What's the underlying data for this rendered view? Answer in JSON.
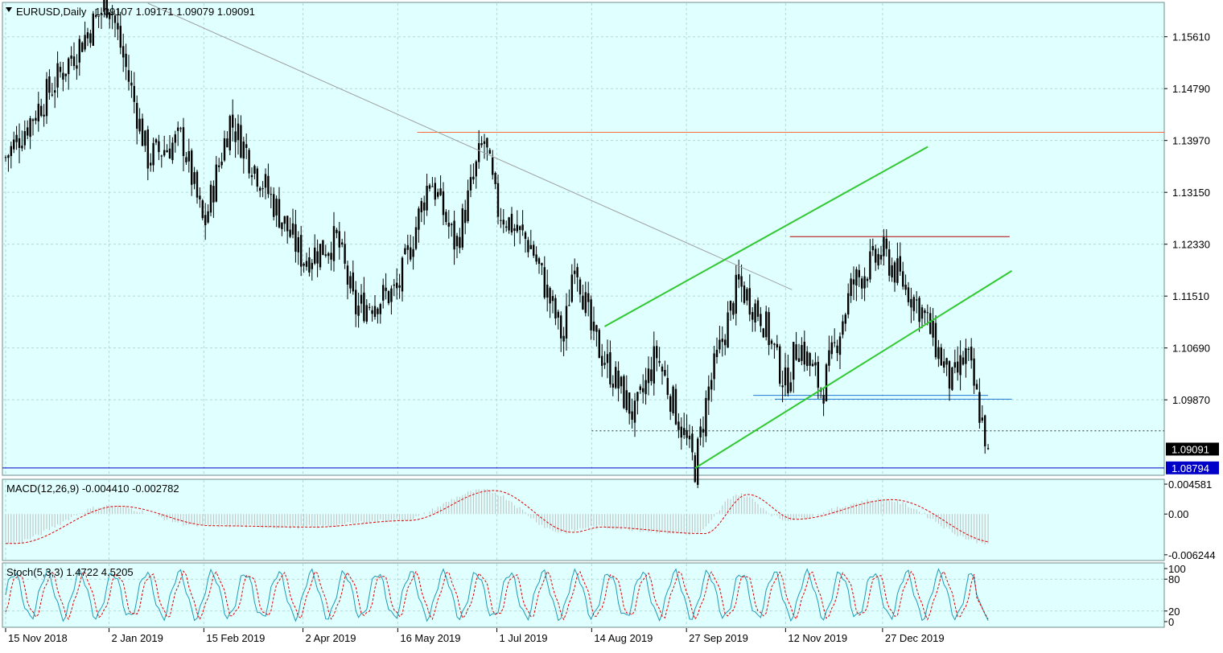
{
  "header": {
    "symbol_label": "EURUSD,Daily",
    "ohlc": "1.09107 1.09171 1.09079 1.09091"
  },
  "colors": {
    "background": "#e0ffff",
    "candle": "#000000",
    "grid": "#b4d7d7",
    "channel": "#32c832",
    "resistance": "#ff6a3c",
    "upper_box": "#b40000",
    "support_blue": "#1e78d2",
    "bottom_line": "#0000c8",
    "trendline": "#a0a0a0",
    "macd_hist": "#c0c0c0",
    "macd_signal": "#e00000",
    "stoch_main": "#1e9bb4",
    "stoch_signal": "#e00000"
  },
  "chart_data": [
    {
      "type": "candlestick",
      "panel": "price",
      "symbol": "EURUSD",
      "timeframe": "Daily",
      "last_ohlc": {
        "open": 1.09107,
        "high": 1.09171,
        "low": 1.09079,
        "close": 1.09091
      },
      "y_ticks": [
        "1.15610",
        "1.14790",
        "1.13970",
        "1.13150",
        "1.12330",
        "1.11510",
        "1.10690",
        "1.09870"
      ],
      "y_range": [
        1.0869,
        1.1614
      ],
      "x_labels": [
        "15 Nov 2018",
        "2 Jan 2019",
        "15 Feb 2019",
        "2 Apr 2019",
        "16 May 2019",
        "1 Jul 2019",
        "14 Aug 2019",
        "27 Sep 2019",
        "12 Nov 2019",
        "27 Dec 2019"
      ],
      "price_tags": [
        {
          "label": "1.09091",
          "value": 1.09091,
          "style": "current"
        },
        {
          "label": "1.08794",
          "value": 1.08794,
          "style": "line"
        }
      ],
      "swing_points": [
        {
          "date": "15 Nov 2018",
          "price": 1.137
        },
        {
          "date": "2 Jan 2019",
          "price": 1.162
        },
        {
          "date": "20 Jan 2019",
          "price": 1.137
        },
        {
          "date": "5 Feb 2019",
          "price": 1.14
        },
        {
          "date": "15 Feb 2019",
          "price": 1.126
        },
        {
          "date": "27 Feb 2019",
          "price": 1.143
        },
        {
          "date": "2 Apr 2019",
          "price": 1.121
        },
        {
          "date": "18 Apr 2019",
          "price": 1.124
        },
        {
          "date": "26 Apr 2019",
          "price": 1.113
        },
        {
          "date": "16 May 2019",
          "price": 1.116
        },
        {
          "date": "31 May 2019",
          "price": 1.134
        },
        {
          "date": "12 Jun 2019",
          "price": 1.123
        },
        {
          "date": "25 Jun 2019",
          "price": 1.14
        },
        {
          "date": "1 Jul 2019",
          "price": 1.129
        },
        {
          "date": "17 Jul 2019",
          "price": 1.123
        },
        {
          "date": "1 Aug 2019",
          "price": 1.108
        },
        {
          "date": "6 Aug 2019",
          "price": 1.122
        },
        {
          "date": "14 Aug 2019",
          "price": 1.109
        },
        {
          "date": "3 Sep 2019",
          "price": 1.096
        },
        {
          "date": "13 Sep 2019",
          "price": 1.106
        },
        {
          "date": "1 Oct 2019",
          "price": 1.088
        },
        {
          "date": "7 Oct 2019",
          "price": 1.1
        },
        {
          "date": "21 Oct 2019",
          "price": 1.117
        },
        {
          "date": "1 Nov 2019",
          "price": 1.112
        },
        {
          "date": "12 Nov 2019",
          "price": 1.101
        },
        {
          "date": "18 Nov 2019",
          "price": 1.108
        },
        {
          "date": "29 Nov 2019",
          "price": 1.1
        },
        {
          "date": "13 Dec 2019",
          "price": 1.117
        },
        {
          "date": "27 Dec 2019",
          "price": 1.122
        },
        {
          "date": "14 Jan 2020",
          "price": 1.113
        },
        {
          "date": "20 Jan 2020",
          "price": 1.108
        },
        {
          "date": "28 Jan 2020",
          "price": 1.101
        },
        {
          "date": "4 Feb 2020",
          "price": 1.106
        },
        {
          "date": "14 Feb 2020",
          "price": 1.0909
        }
      ],
      "drawn_levels": [
        {
          "kind": "horizontal",
          "price": 1.141,
          "from": "25 May 2019",
          "to": "end"
        },
        {
          "kind": "horizontal",
          "price": 1.1245,
          "from": "14 Nov 2019",
          "to": "24 Feb 2020"
        },
        {
          "kind": "horizontal",
          "price": 1.0994,
          "from": "28 Oct 2019",
          "to": "14 Feb 2020"
        },
        {
          "kind": "horizontal",
          "price": 1.0988,
          "from": "7 Nov 2019",
          "to": "25 Feb 2020"
        },
        {
          "kind": "horizontal",
          "price": 1.08794,
          "from": "start",
          "to": "end"
        },
        {
          "kind": "dotted",
          "price": 1.0938,
          "from": "14 Aug 2019",
          "to": "end"
        }
      ],
      "trendlines": [
        {
          "kind": "downtrend",
          "points": [
            {
              "date": "20 Jan 2019",
              "price": 1.1614
            },
            {
              "date": "15 Nov 2019",
              "price": 1.1161
            }
          ]
        },
        {
          "kind": "channel",
          "points": [
            {
              "date": "1 Oct 2019",
              "price": 1.0879
            },
            {
              "date": "25 Feb 2020",
              "price": 1.1191
            }
          ]
        },
        {
          "kind": "channel",
          "points": [
            {
              "date": "20 Aug 2019",
              "price": 1.1103
            },
            {
              "date": "17 Jan 2020",
              "price": 1.1387
            }
          ]
        }
      ]
    },
    {
      "type": "line",
      "panel": "macd",
      "label": "MACD(12,26,9) -0.004410 -0.002782",
      "y_ticks": [
        "0.004581",
        "0.00",
        "-0.006244"
      ],
      "y_range": [
        -0.007,
        0.0052
      ],
      "swing_points": [
        {
          "date": "15 Nov 2018",
          "value": -0.0045
        },
        {
          "date": "2 Jan 2019",
          "value": 0.0012
        },
        {
          "date": "15 Feb 2019",
          "value": -0.0018
        },
        {
          "date": "2 Apr 2019",
          "value": -0.002
        },
        {
          "date": "16 May 2019",
          "value": -0.001
        },
        {
          "date": "25 Jun 2019",
          "value": 0.0036
        },
        {
          "date": "1 Aug 2019",
          "value": -0.0028
        },
        {
          "date": "14 Aug 2019",
          "value": -0.002
        },
        {
          "date": "1 Oct 2019",
          "value": -0.003
        },
        {
          "date": "21 Oct 2019",
          "value": 0.003
        },
        {
          "date": "12 Nov 2019",
          "value": -0.0008
        },
        {
          "date": "27 Dec 2019",
          "value": 0.0022
        },
        {
          "date": "14 Feb 2020",
          "value": -0.0044
        }
      ]
    },
    {
      "type": "line",
      "panel": "stochastic",
      "label": "Stoch(5,3,3) 1.4722 4.5205",
      "y_ticks": [
        "100",
        "80",
        "20",
        "0"
      ],
      "y_range": [
        0,
        100
      ]
    }
  ]
}
